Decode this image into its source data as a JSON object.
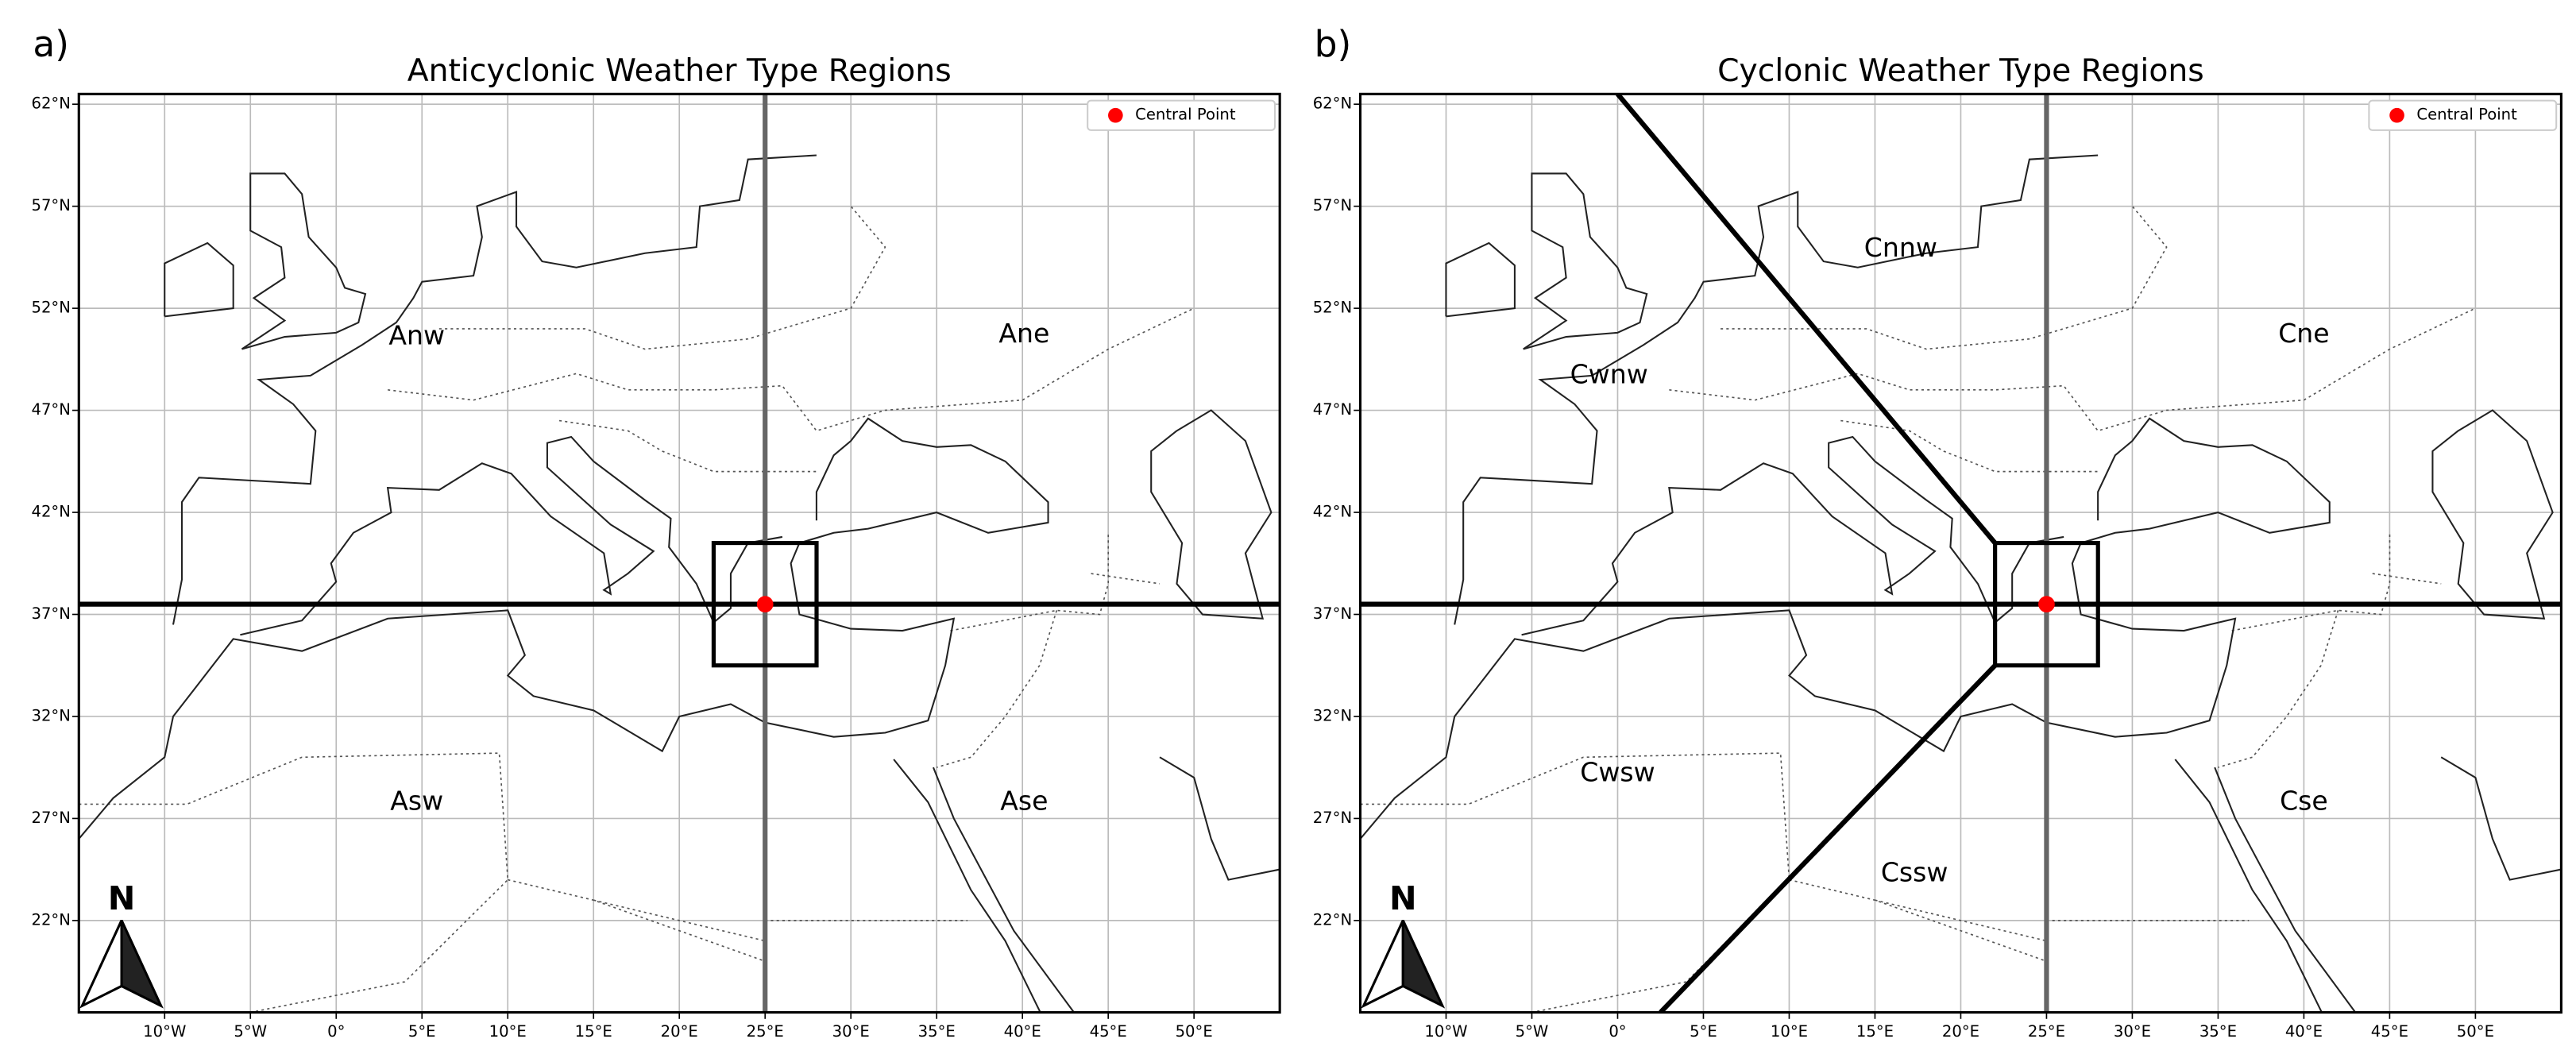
{
  "panels": [
    {
      "label": "a)",
      "title": "Anticyclonic Weather Type Regions",
      "legend": "Central Point",
      "north": "N",
      "xlim": [
        -15,
        55
      ],
      "ylim": [
        17.5,
        62.5
      ],
      "xticks": [
        {
          "value": -10,
          "label": "10°W"
        },
        {
          "value": -5,
          "label": "5°W"
        },
        {
          "value": 0,
          "label": "0°"
        },
        {
          "value": 5,
          "label": "5°E"
        },
        {
          "value": 10,
          "label": "10°E"
        },
        {
          "value": 15,
          "label": "15°E"
        },
        {
          "value": 20,
          "label": "20°E"
        },
        {
          "value": 25,
          "label": "25°E"
        },
        {
          "value": 30,
          "label": "30°E"
        },
        {
          "value": 35,
          "label": "35°E"
        },
        {
          "value": 40,
          "label": "40°E"
        },
        {
          "value": 45,
          "label": "45°E"
        },
        {
          "value": 50,
          "label": "50°E"
        }
      ],
      "yticks": [
        {
          "value": 22,
          "label": "22°N"
        },
        {
          "value": 27,
          "label": "27°N"
        },
        {
          "value": 32,
          "label": "32°N"
        },
        {
          "value": 37,
          "label": "37°N"
        },
        {
          "value": 42,
          "label": "42°N"
        },
        {
          "value": 47,
          "label": "47°N"
        },
        {
          "value": 52,
          "label": "52°N"
        },
        {
          "value": 57,
          "label": "57°N"
        },
        {
          "value": 62,
          "label": "62°N"
        }
      ],
      "central_point": {
        "lon": 25,
        "lat": 37.5,
        "color": "#ff0000"
      },
      "box": {
        "lon": [
          22,
          28
        ],
        "lat": [
          34.5,
          40.5
        ]
      },
      "lines": [
        {
          "lon": [
            -15,
            55
          ],
          "lat": [
            37.5,
            37.5
          ],
          "color": "#000000"
        },
        {
          "lon": [
            25,
            25
          ],
          "lat": [
            17.5,
            62.5
          ],
          "color": "#666666"
        }
      ],
      "regions": [
        "Anw",
        "Ane",
        "Asw",
        "Ase"
      ]
    },
    {
      "label": "b)",
      "title": "Cyclonic Weather Type Regions",
      "legend": "Central Point",
      "north": "N",
      "xlim": [
        -15,
        55
      ],
      "ylim": [
        17.5,
        62.5
      ],
      "xticks": [
        {
          "value": -10,
          "label": "10°W"
        },
        {
          "value": -5,
          "label": "5°W"
        },
        {
          "value": 0,
          "label": "0°"
        },
        {
          "value": 5,
          "label": "5°E"
        },
        {
          "value": 10,
          "label": "10°E"
        },
        {
          "value": 15,
          "label": "15°E"
        },
        {
          "value": 20,
          "label": "20°E"
        },
        {
          "value": 25,
          "label": "25°E"
        },
        {
          "value": 30,
          "label": "30°E"
        },
        {
          "value": 35,
          "label": "35°E"
        },
        {
          "value": 40,
          "label": "40°E"
        },
        {
          "value": 45,
          "label": "45°E"
        },
        {
          "value": 50,
          "label": "50°E"
        }
      ],
      "yticks": [
        {
          "value": 22,
          "label": "22°N"
        },
        {
          "value": 27,
          "label": "27°N"
        },
        {
          "value": 32,
          "label": "32°N"
        },
        {
          "value": 37,
          "label": "37°N"
        },
        {
          "value": 42,
          "label": "42°N"
        },
        {
          "value": 47,
          "label": "47°N"
        },
        {
          "value": 52,
          "label": "52°N"
        },
        {
          "value": 57,
          "label": "57°N"
        },
        {
          "value": 62,
          "label": "62°N"
        }
      ],
      "central_point": {
        "lon": 25,
        "lat": 37.5,
        "color": "#ff0000"
      },
      "box": {
        "lon": [
          22,
          28
        ],
        "lat": [
          34.5,
          40.5
        ]
      },
      "lines": [
        {
          "lon": [
            -15,
            55
          ],
          "lat": [
            37.5,
            37.5
          ],
          "color": "#000000"
        },
        {
          "lon": [
            25,
            25
          ],
          "lat": [
            17.5,
            62.5
          ],
          "color": "#666666"
        },
        {
          "lon": [
            0,
            22
          ],
          "lat": [
            62.5,
            40.5
          ],
          "color": "#000000"
        },
        {
          "lon": [
            22,
            2.5
          ],
          "lat": [
            34.5,
            17.5
          ],
          "color": "#000000"
        }
      ],
      "regions": [
        "Cnnw",
        "Cne",
        "Cwnw",
        "Cwsw",
        "Cssw",
        "Cse"
      ]
    }
  ]
}
